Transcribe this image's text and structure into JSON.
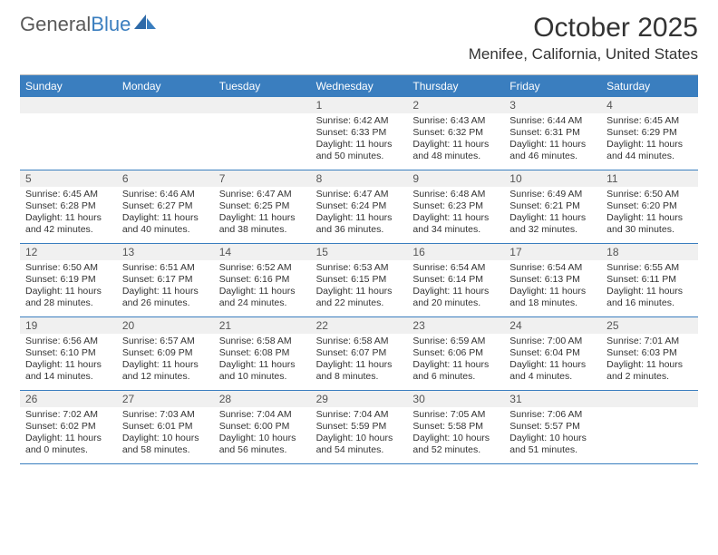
{
  "logo": {
    "text_gray": "General",
    "text_blue": "Blue"
  },
  "title": "October 2025",
  "location": "Menifee, California, United States",
  "header_bg": "#3a7ebf",
  "days": [
    "Sunday",
    "Monday",
    "Tuesday",
    "Wednesday",
    "Thursday",
    "Friday",
    "Saturday"
  ],
  "weeks": [
    {
      "nums": [
        "",
        "",
        "",
        "1",
        "2",
        "3",
        "4"
      ],
      "cells": [
        null,
        null,
        null,
        {
          "sr": "Sunrise: 6:42 AM",
          "ss": "Sunset: 6:33 PM",
          "dl": "Daylight: 11 hours and 50 minutes."
        },
        {
          "sr": "Sunrise: 6:43 AM",
          "ss": "Sunset: 6:32 PM",
          "dl": "Daylight: 11 hours and 48 minutes."
        },
        {
          "sr": "Sunrise: 6:44 AM",
          "ss": "Sunset: 6:31 PM",
          "dl": "Daylight: 11 hours and 46 minutes."
        },
        {
          "sr": "Sunrise: 6:45 AM",
          "ss": "Sunset: 6:29 PM",
          "dl": "Daylight: 11 hours and 44 minutes."
        }
      ]
    },
    {
      "nums": [
        "5",
        "6",
        "7",
        "8",
        "9",
        "10",
        "11"
      ],
      "cells": [
        {
          "sr": "Sunrise: 6:45 AM",
          "ss": "Sunset: 6:28 PM",
          "dl": "Daylight: 11 hours and 42 minutes."
        },
        {
          "sr": "Sunrise: 6:46 AM",
          "ss": "Sunset: 6:27 PM",
          "dl": "Daylight: 11 hours and 40 minutes."
        },
        {
          "sr": "Sunrise: 6:47 AM",
          "ss": "Sunset: 6:25 PM",
          "dl": "Daylight: 11 hours and 38 minutes."
        },
        {
          "sr": "Sunrise: 6:47 AM",
          "ss": "Sunset: 6:24 PM",
          "dl": "Daylight: 11 hours and 36 minutes."
        },
        {
          "sr": "Sunrise: 6:48 AM",
          "ss": "Sunset: 6:23 PM",
          "dl": "Daylight: 11 hours and 34 minutes."
        },
        {
          "sr": "Sunrise: 6:49 AM",
          "ss": "Sunset: 6:21 PM",
          "dl": "Daylight: 11 hours and 32 minutes."
        },
        {
          "sr": "Sunrise: 6:50 AM",
          "ss": "Sunset: 6:20 PM",
          "dl": "Daylight: 11 hours and 30 minutes."
        }
      ]
    },
    {
      "nums": [
        "12",
        "13",
        "14",
        "15",
        "16",
        "17",
        "18"
      ],
      "cells": [
        {
          "sr": "Sunrise: 6:50 AM",
          "ss": "Sunset: 6:19 PM",
          "dl": "Daylight: 11 hours and 28 minutes."
        },
        {
          "sr": "Sunrise: 6:51 AM",
          "ss": "Sunset: 6:17 PM",
          "dl": "Daylight: 11 hours and 26 minutes."
        },
        {
          "sr": "Sunrise: 6:52 AM",
          "ss": "Sunset: 6:16 PM",
          "dl": "Daylight: 11 hours and 24 minutes."
        },
        {
          "sr": "Sunrise: 6:53 AM",
          "ss": "Sunset: 6:15 PM",
          "dl": "Daylight: 11 hours and 22 minutes."
        },
        {
          "sr": "Sunrise: 6:54 AM",
          "ss": "Sunset: 6:14 PM",
          "dl": "Daylight: 11 hours and 20 minutes."
        },
        {
          "sr": "Sunrise: 6:54 AM",
          "ss": "Sunset: 6:13 PM",
          "dl": "Daylight: 11 hours and 18 minutes."
        },
        {
          "sr": "Sunrise: 6:55 AM",
          "ss": "Sunset: 6:11 PM",
          "dl": "Daylight: 11 hours and 16 minutes."
        }
      ]
    },
    {
      "nums": [
        "19",
        "20",
        "21",
        "22",
        "23",
        "24",
        "25"
      ],
      "cells": [
        {
          "sr": "Sunrise: 6:56 AM",
          "ss": "Sunset: 6:10 PM",
          "dl": "Daylight: 11 hours and 14 minutes."
        },
        {
          "sr": "Sunrise: 6:57 AM",
          "ss": "Sunset: 6:09 PM",
          "dl": "Daylight: 11 hours and 12 minutes."
        },
        {
          "sr": "Sunrise: 6:58 AM",
          "ss": "Sunset: 6:08 PM",
          "dl": "Daylight: 11 hours and 10 minutes."
        },
        {
          "sr": "Sunrise: 6:58 AM",
          "ss": "Sunset: 6:07 PM",
          "dl": "Daylight: 11 hours and 8 minutes."
        },
        {
          "sr": "Sunrise: 6:59 AM",
          "ss": "Sunset: 6:06 PM",
          "dl": "Daylight: 11 hours and 6 minutes."
        },
        {
          "sr": "Sunrise: 7:00 AM",
          "ss": "Sunset: 6:04 PM",
          "dl": "Daylight: 11 hours and 4 minutes."
        },
        {
          "sr": "Sunrise: 7:01 AM",
          "ss": "Sunset: 6:03 PM",
          "dl": "Daylight: 11 hours and 2 minutes."
        }
      ]
    },
    {
      "nums": [
        "26",
        "27",
        "28",
        "29",
        "30",
        "31",
        ""
      ],
      "cells": [
        {
          "sr": "Sunrise: 7:02 AM",
          "ss": "Sunset: 6:02 PM",
          "dl": "Daylight: 11 hours and 0 minutes."
        },
        {
          "sr": "Sunrise: 7:03 AM",
          "ss": "Sunset: 6:01 PM",
          "dl": "Daylight: 10 hours and 58 minutes."
        },
        {
          "sr": "Sunrise: 7:04 AM",
          "ss": "Sunset: 6:00 PM",
          "dl": "Daylight: 10 hours and 56 minutes."
        },
        {
          "sr": "Sunrise: 7:04 AM",
          "ss": "Sunset: 5:59 PM",
          "dl": "Daylight: 10 hours and 54 minutes."
        },
        {
          "sr": "Sunrise: 7:05 AM",
          "ss": "Sunset: 5:58 PM",
          "dl": "Daylight: 10 hours and 52 minutes."
        },
        {
          "sr": "Sunrise: 7:06 AM",
          "ss": "Sunset: 5:57 PM",
          "dl": "Daylight: 10 hours and 51 minutes."
        },
        null
      ]
    }
  ]
}
